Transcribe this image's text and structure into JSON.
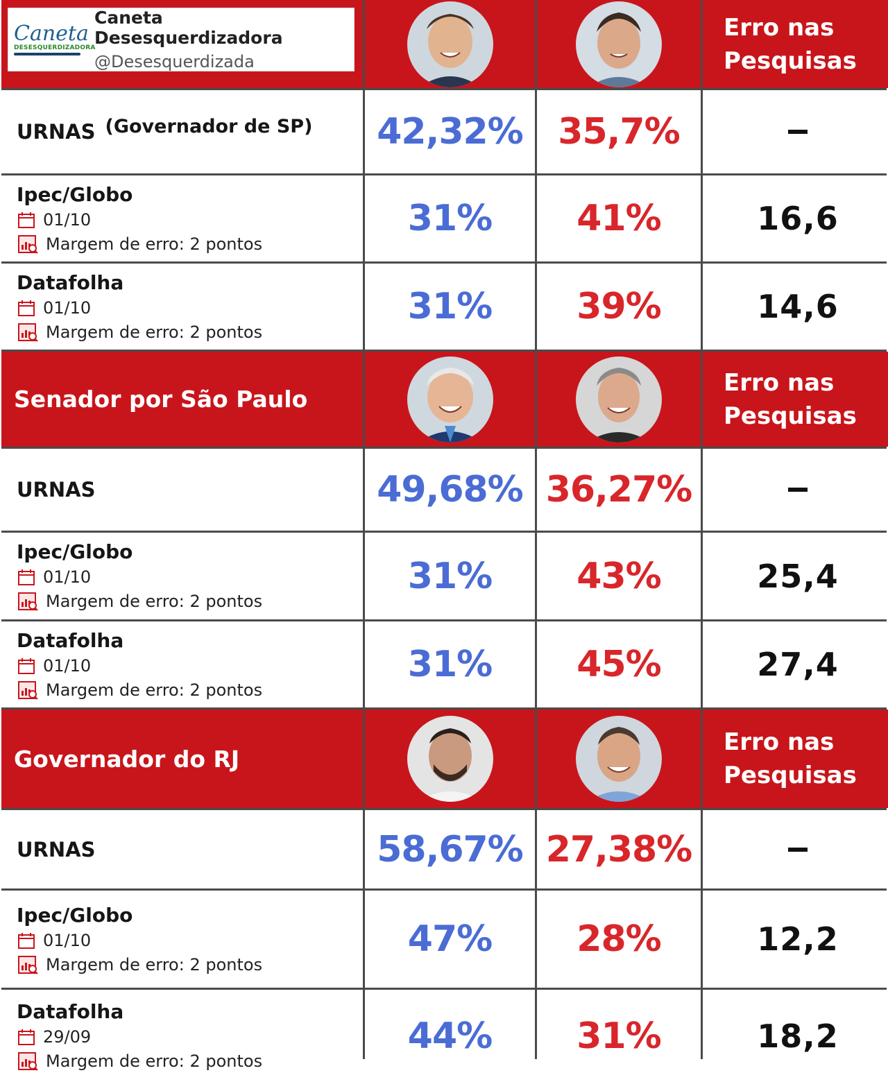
{
  "badge": {
    "logo_script": "Caneta",
    "logo_sub": "DESESQUERDIZADORA",
    "name": "Caneta Desesquerdizadora",
    "handle": "@Desesquerdizada"
  },
  "error_header": [
    "Erro nas",
    "Pesquisas"
  ],
  "colors": {
    "header_red": "#c8151b",
    "candidate_blue": "#4a6cd4",
    "candidate_red": "#d8262a"
  },
  "sections": [
    {
      "title": "",
      "urnas": {
        "label": "URNAS",
        "paren": "(Governador de SP)",
        "a": "42,32%",
        "b": "35,7%",
        "err": "-"
      },
      "polls": [
        {
          "name": "Ipec/Globo",
          "date": "01/10",
          "margin": "Margem de erro: 2 pontos",
          "a": "31%",
          "b": "41%",
          "err": "16,6"
        },
        {
          "name": "Datafolha",
          "date": "01/10",
          "margin": "Margem de erro: 2 pontos",
          "a": "31%",
          "b": "39%",
          "err": "14,6"
        }
      ]
    },
    {
      "title": "Senador por São Paulo",
      "urnas": {
        "label": "URNAS",
        "paren": "",
        "a": "49,68%",
        "b": "36,27%",
        "err": "-"
      },
      "polls": [
        {
          "name": "Ipec/Globo",
          "date": "01/10",
          "margin": "Margem de erro: 2 pontos",
          "a": "31%",
          "b": "43%",
          "err": "25,4"
        },
        {
          "name": "Datafolha",
          "date": "01/10",
          "margin": "Margem de erro: 2 pontos",
          "a": "31%",
          "b": "45%",
          "err": "27,4"
        }
      ]
    },
    {
      "title": "Governador do RJ",
      "urnas": {
        "label": "URNAS",
        "paren": "",
        "a": "58,67%",
        "b": "27,38%",
        "err": "-"
      },
      "polls": [
        {
          "name": "Ipec/Globo",
          "date": "01/10",
          "margin": "Margem de erro: 2 pontos",
          "a": "47%",
          "b": "28%",
          "err": "12,2"
        },
        {
          "name": "Datafolha",
          "date": "29/09",
          "margin": "Margem de erro: 2 pontos",
          "a": "44%",
          "b": "31%",
          "err": "18,2"
        }
      ]
    }
  ]
}
